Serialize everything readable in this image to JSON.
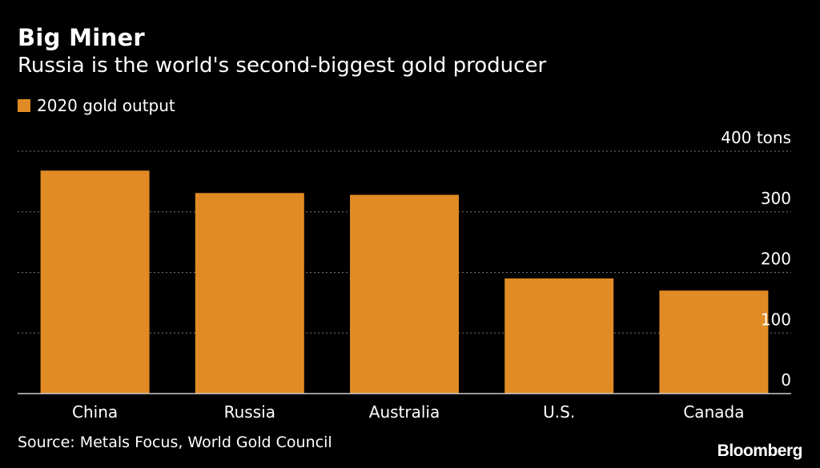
{
  "title": "Big Miner",
  "subtitle": "Russia is the world's second-biggest gold producer",
  "legend": {
    "label": "2020 gold output"
  },
  "source": "Source: Metals Focus, World Gold Council",
  "brand": "Bloomberg",
  "colors": {
    "bar": "#e08b24",
    "background": "#000000",
    "gridline": "#777777",
    "text": "#ffffff"
  },
  "chart_data": {
    "type": "bar",
    "title": "Big Miner",
    "subtitle": "Russia is the world's second-biggest gold producer",
    "categories": [
      "China",
      "Russia",
      "Australia",
      "U.S.",
      "Canada"
    ],
    "series": [
      {
        "name": "2020 gold output",
        "values": [
          368,
          331,
          328,
          190,
          170
        ]
      }
    ],
    "xlabel": "",
    "ylabel": "",
    "y_unit": "tons",
    "ylim": [
      0,
      400
    ],
    "yticks": [
      0,
      100,
      200,
      300,
      400
    ],
    "ytick_labels": [
      "0",
      "100",
      "200",
      "300",
      "400 tons"
    ],
    "y_axis_side": "right",
    "grid": true,
    "legend_position": "top-left"
  }
}
